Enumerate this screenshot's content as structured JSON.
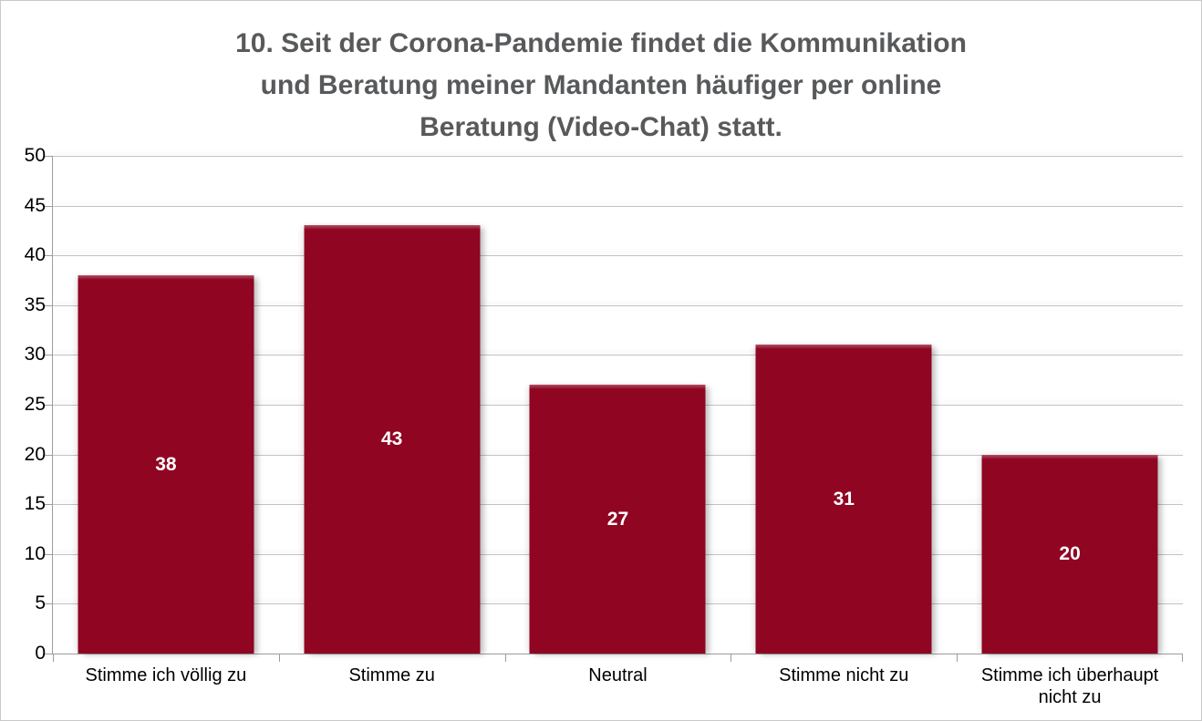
{
  "title": {
    "line1": "10. Seit der Corona-Pandemie findet die Kommunikation",
    "line2": "und Beratung meiner Mandanten häufiger per online",
    "line3": "Beratung (Video-Chat) statt."
  },
  "colors": {
    "bar": "#8F0522",
    "title_text": "#58595B",
    "gridline": "#c3c3c3",
    "axis": "#9d9d9d",
    "value_label": "#ffffff",
    "tick_label": "#000000",
    "background": "#ffffff"
  },
  "chart_data": {
    "type": "bar",
    "title": "10. Seit der Corona-Pandemie findet die Kommunikation und Beratung meiner Mandanten häufiger per online Beratung (Video-Chat) statt.",
    "categories": [
      "Stimme ich völlig zu",
      "Stimme zu",
      "Neutral",
      "Stimme nicht zu",
      "Stimme ich überhaupt nicht zu"
    ],
    "values": [
      38,
      43,
      27,
      31,
      20
    ],
    "data_labels": [
      "38",
      "43",
      "27",
      "31",
      "20"
    ],
    "xlabel": "",
    "ylabel": "",
    "ylim": [
      0,
      50
    ],
    "ytick_step": 5,
    "ytick_labels": [
      "0",
      "5",
      "10",
      "15",
      "20",
      "25",
      "30",
      "35",
      "40",
      "45",
      "50"
    ],
    "grid": true,
    "legend_position": "none",
    "bar_color": "#8F0522",
    "value_label_position": "center"
  }
}
